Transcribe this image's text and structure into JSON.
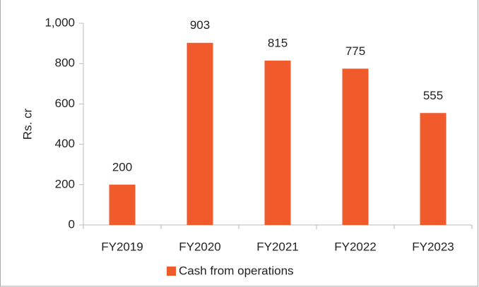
{
  "chart_data": {
    "type": "bar",
    "y_label": "Rs. cr",
    "categories": [
      "FY2019",
      "FY2020",
      "FY2021",
      "FY2022",
      "FY2023"
    ],
    "series": [
      {
        "name": "Cash from operations",
        "color": "#f15a2b",
        "values": [
          200,
          903,
          815,
          775,
          555
        ]
      }
    ],
    "ylim": [
      0,
      1000
    ],
    "yticks": [
      0,
      200,
      400,
      600,
      800,
      {
        "value": 1000,
        "label": "1,000"
      }
    ],
    "grid": false,
    "legend": "bottom"
  }
}
